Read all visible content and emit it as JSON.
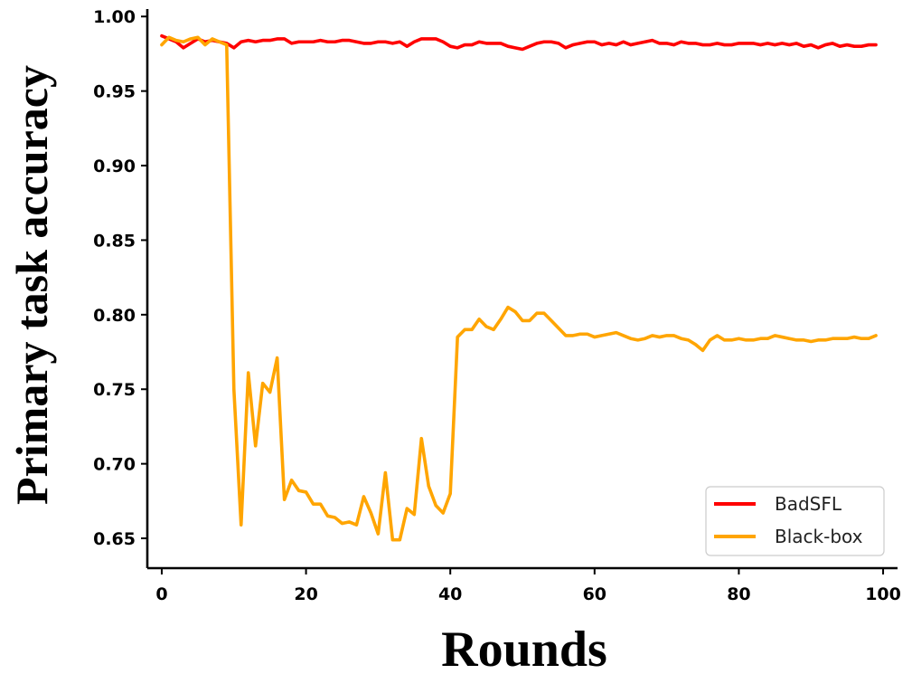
{
  "chart_data": {
    "type": "line",
    "title": "",
    "xlabel": "Rounds",
    "ylabel": "Primary task accuracy",
    "xlim": [
      -2,
      102
    ],
    "ylim": [
      0.63,
      1.005
    ],
    "xticks": [
      0,
      20,
      40,
      60,
      80,
      100
    ],
    "xtick_labels": [
      "0",
      "20",
      "40",
      "60",
      "80",
      "100"
    ],
    "yticks": [
      0.65,
      0.7,
      0.75,
      0.8,
      0.85,
      0.9,
      0.95,
      1.0
    ],
    "ytick_labels": [
      "0.65",
      "0.70",
      "0.75",
      "0.80",
      "0.85",
      "0.90",
      "0.95",
      "1.00"
    ],
    "grid": false,
    "legend": "lower-right",
    "series": [
      {
        "name": "BadSFL",
        "color": "#ff0000",
        "x": [
          0,
          1,
          2,
          3,
          4,
          5,
          6,
          7,
          8,
          9,
          10,
          11,
          12,
          13,
          14,
          15,
          16,
          17,
          18,
          19,
          20,
          21,
          22,
          23,
          24,
          25,
          26,
          27,
          28,
          29,
          30,
          31,
          32,
          33,
          34,
          35,
          36,
          37,
          38,
          39,
          40,
          41,
          42,
          43,
          44,
          45,
          46,
          47,
          48,
          49,
          50,
          51,
          52,
          53,
          54,
          55,
          56,
          57,
          58,
          59,
          60,
          61,
          62,
          63,
          64,
          65,
          66,
          67,
          68,
          69,
          70,
          71,
          72,
          73,
          74,
          75,
          76,
          77,
          78,
          79,
          80,
          81,
          82,
          83,
          84,
          85,
          86,
          87,
          88,
          89,
          90,
          91,
          92,
          93,
          94,
          95,
          96,
          97,
          98,
          99
        ],
        "values": [
          0.987,
          0.985,
          0.983,
          0.979,
          0.982,
          0.985,
          0.983,
          0.984,
          0.983,
          0.982,
          0.979,
          0.983,
          0.984,
          0.983,
          0.984,
          0.984,
          0.985,
          0.985,
          0.982,
          0.983,
          0.983,
          0.983,
          0.984,
          0.983,
          0.983,
          0.984,
          0.984,
          0.983,
          0.982,
          0.982,
          0.983,
          0.983,
          0.982,
          0.983,
          0.98,
          0.983,
          0.985,
          0.985,
          0.985,
          0.983,
          0.98,
          0.979,
          0.981,
          0.981,
          0.983,
          0.982,
          0.982,
          0.982,
          0.98,
          0.979,
          0.978,
          0.98,
          0.982,
          0.983,
          0.983,
          0.982,
          0.979,
          0.981,
          0.982,
          0.983,
          0.983,
          0.981,
          0.982,
          0.981,
          0.983,
          0.981,
          0.982,
          0.983,
          0.984,
          0.982,
          0.982,
          0.981,
          0.983,
          0.982,
          0.982,
          0.981,
          0.981,
          0.982,
          0.981,
          0.981,
          0.982,
          0.982,
          0.982,
          0.981,
          0.982,
          0.981,
          0.982,
          0.981,
          0.982,
          0.98,
          0.981,
          0.979,
          0.981,
          0.982,
          0.98,
          0.981,
          0.98,
          0.98,
          0.981,
          0.981
        ]
      },
      {
        "name": "Black-box",
        "color": "#ffa500",
        "x": [
          0,
          1,
          2,
          3,
          4,
          5,
          6,
          7,
          8,
          9,
          10,
          11,
          12,
          13,
          14,
          15,
          16,
          17,
          18,
          19,
          20,
          21,
          22,
          23,
          24,
          25,
          26,
          27,
          28,
          29,
          30,
          31,
          32,
          33,
          34,
          35,
          36,
          37,
          38,
          39,
          40,
          41,
          42,
          43,
          44,
          45,
          46,
          47,
          48,
          49,
          50,
          51,
          52,
          53,
          54,
          55,
          56,
          57,
          58,
          59,
          60,
          61,
          62,
          63,
          64,
          65,
          66,
          67,
          68,
          69,
          70,
          71,
          72,
          73,
          74,
          75,
          76,
          77,
          78,
          79,
          80,
          81,
          82,
          83,
          84,
          85,
          86,
          87,
          88,
          89,
          90,
          91,
          92,
          93,
          94,
          95,
          96,
          97,
          98,
          99
        ],
        "values": [
          0.981,
          0.986,
          0.984,
          0.983,
          0.985,
          0.986,
          0.981,
          0.985,
          0.983,
          0.981,
          0.75,
          0.659,
          0.761,
          0.712,
          0.754,
          0.748,
          0.771,
          0.676,
          0.689,
          0.682,
          0.681,
          0.673,
          0.673,
          0.665,
          0.664,
          0.66,
          0.661,
          0.659,
          0.678,
          0.667,
          0.653,
          0.694,
          0.649,
          0.649,
          0.67,
          0.666,
          0.717,
          0.685,
          0.672,
          0.667,
          0.68,
          0.785,
          0.79,
          0.79,
          0.797,
          0.792,
          0.79,
          0.797,
          0.805,
          0.802,
          0.796,
          0.796,
          0.801,
          0.801,
          0.796,
          0.791,
          0.786,
          0.786,
          0.787,
          0.787,
          0.785,
          0.786,
          0.787,
          0.788,
          0.786,
          0.784,
          0.783,
          0.784,
          0.786,
          0.785,
          0.786,
          0.786,
          0.784,
          0.783,
          0.78,
          0.776,
          0.783,
          0.786,
          0.783,
          0.783,
          0.784,
          0.783,
          0.783,
          0.784,
          0.784,
          0.786,
          0.785,
          0.784,
          0.783,
          0.783,
          0.782,
          0.783,
          0.783,
          0.784,
          0.784,
          0.784,
          0.785,
          0.784,
          0.784,
          0.786
        ]
      }
    ]
  }
}
